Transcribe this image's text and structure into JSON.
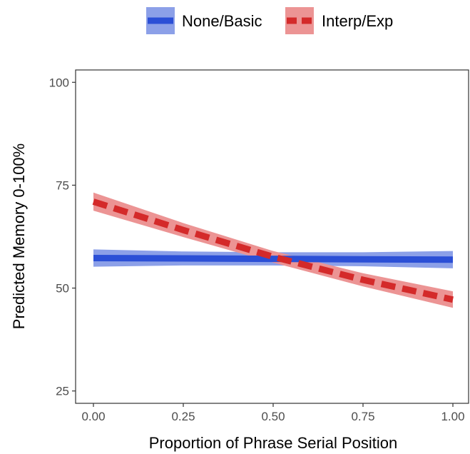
{
  "chart_data": {
    "type": "line",
    "xlabel": "Proportion of Phrase Serial Position",
    "ylabel": "Predicted Memory 0-100%",
    "xlim": [
      0,
      1
    ],
    "ylim": [
      22,
      103
    ],
    "x_ticks": [
      0,
      0.25,
      0.5,
      0.75,
      1
    ],
    "x_tick_labels": [
      "0.00",
      "0.25",
      "0.50",
      "0.75",
      "1.00"
    ],
    "y_ticks": [
      25,
      50,
      75,
      100
    ],
    "y_tick_labels": [
      "25",
      "50",
      "75",
      "100"
    ],
    "grid": false,
    "legend_position": "top",
    "series": [
      {
        "name": "None/Basic",
        "line_style": "solid",
        "color": "#2b4fd6",
        "band_color": "#8ca0e8",
        "x": [
          0,
          0.25,
          0.5,
          0.75,
          1
        ],
        "values": [
          57.3,
          57.2,
          57.1,
          57.0,
          56.9
        ],
        "ci_lower": [
          55.2,
          55.5,
          55.5,
          55.3,
          54.8
        ],
        "ci_upper": [
          59.4,
          58.9,
          58.7,
          58.7,
          59.0
        ]
      },
      {
        "name": "Interp/Exp",
        "line_style": "dashed",
        "color": "#d42a2a",
        "band_color": "#ec9494",
        "x": [
          0,
          0.25,
          0.5,
          0.75,
          1
        ],
        "values": [
          71.0,
          64.1,
          57.6,
          52.0,
          47.2
        ],
        "ci_lower": [
          68.8,
          62.4,
          56.2,
          50.4,
          45.2
        ],
        "ci_upper": [
          73.2,
          65.8,
          59.0,
          53.6,
          49.2
        ]
      }
    ]
  }
}
